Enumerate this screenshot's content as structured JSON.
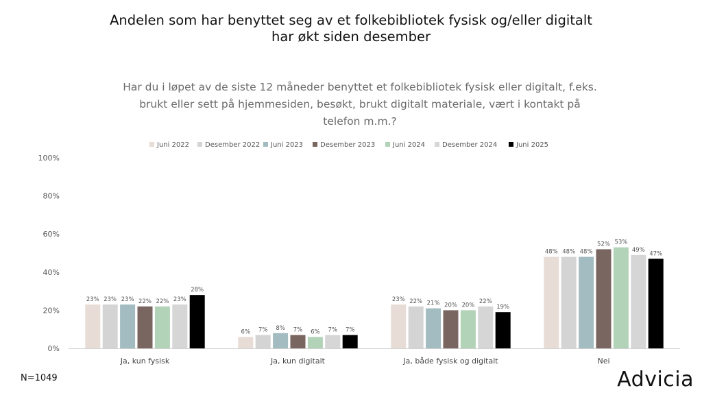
{
  "title_line1": "Andelen som har benyttet seg av et folkebibliotek fysisk og/eller digitalt",
  "title_line2": "har økt siden desember",
  "question_line1": "Har du i løpet av de siste 12 måneder benyttet et folkebibliotek fysisk eller digitalt, f.eks.",
  "question_line2": "brukt eller sett på hjemmesiden, besøkt, brukt digitalt materiale, vært i kontakt på",
  "question_line3": "telefon m.m.?",
  "footnote": "N=1049",
  "brand": "Advicia",
  "chart_data": {
    "type": "bar",
    "categories": [
      "Ja, kun fysisk",
      "Ja, kun digitalt",
      "Ja, både fysisk og digitalt",
      "Nei"
    ],
    "series": [
      {
        "name": "Juni 2022",
        "color": "#e8ddd6",
        "values": [
          23,
          6,
          23,
          48
        ]
      },
      {
        "name": "Desember 2022",
        "color": "#d4d4d4",
        "values": [
          23,
          7,
          22,
          48
        ]
      },
      {
        "name": "Juni 2023",
        "color": "#a3bcc2",
        "values": [
          23,
          8,
          21,
          48
        ]
      },
      {
        "name": "Desember 2023",
        "color": "#7a6660",
        "values": [
          22,
          7,
          20,
          52
        ]
      },
      {
        "name": "Juni 2024",
        "color": "#b3d3b9",
        "values": [
          22,
          6,
          20,
          53
        ]
      },
      {
        "name": "Desember 2024",
        "color": "#d6d6d6",
        "values": [
          23,
          7,
          22,
          49
        ]
      },
      {
        "name": "Juni 2025",
        "color": "#000000",
        "values": [
          28,
          7,
          19,
          47
        ]
      }
    ],
    "value_suffix": "%",
    "ylim": [
      0,
      100
    ],
    "yticks": [
      "0%",
      "20%",
      "40%",
      "60%",
      "80%",
      "100%"
    ],
    "grid": false,
    "legend_position": "top"
  }
}
